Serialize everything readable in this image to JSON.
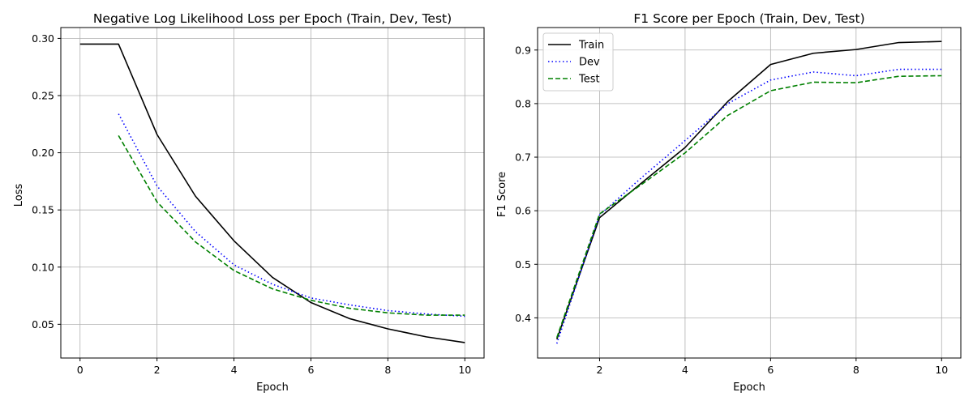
{
  "chart_data": [
    {
      "type": "line",
      "title": "Negative Log Likelihood Loss per Epoch (Train, Dev, Test)",
      "xlabel": "Epoch",
      "ylabel": "Loss",
      "xlim": [
        -0.5,
        10.5
      ],
      "ylim": [
        0.0205,
        0.3095
      ],
      "xticks": [
        0,
        2,
        4,
        6,
        8,
        10
      ],
      "xtick_labels": [
        "0",
        "2",
        "4",
        "6",
        "8",
        "10"
      ],
      "yticks": [
        0.05,
        0.1,
        0.15,
        0.2,
        0.25,
        0.3
      ],
      "ytick_labels": [
        "0.05",
        "0.10",
        "0.15",
        "0.20",
        "0.25",
        "0.30"
      ],
      "grid": true,
      "legend": null,
      "series": [
        {
          "color": "#000000",
          "dash": "solid",
          "x": [
            0,
            1,
            2,
            3,
            4,
            5,
            6,
            7,
            8,
            9,
            10
          ],
          "y": [
            0.295,
            0.295,
            0.216,
            0.162,
            0.123,
            0.091,
            0.069,
            0.055,
            0.046,
            0.039,
            0.034
          ]
        },
        {
          "color": "#0000ff",
          "dash": "dotted",
          "x": [
            1,
            2,
            3,
            4,
            5,
            6,
            7,
            8,
            9,
            10
          ],
          "y": [
            0.234,
            0.171,
            0.131,
            0.102,
            0.085,
            0.073,
            0.067,
            0.062,
            0.059,
            0.057
          ]
        },
        {
          "color": "#008000",
          "dash": "dashed",
          "x": [
            1,
            2,
            3,
            4,
            5,
            6,
            7,
            8,
            9,
            10
          ],
          "y": [
            0.215,
            0.157,
            0.122,
            0.097,
            0.081,
            0.071,
            0.064,
            0.06,
            0.058,
            0.058
          ]
        }
      ]
    },
    {
      "type": "line",
      "title": "F1 Score per Epoch (Train, Dev, Test)",
      "xlabel": "Epoch",
      "ylabel": "F1 Score",
      "xlim": [
        0.55,
        10.45
      ],
      "ylim": [
        0.325,
        0.942
      ],
      "xticks": [
        2,
        4,
        6,
        8,
        10
      ],
      "xtick_labels": [
        "2",
        "4",
        "6",
        "8",
        "10"
      ],
      "yticks": [
        0.4,
        0.5,
        0.6,
        0.7,
        0.8,
        0.9
      ],
      "ytick_labels": [
        "0.4",
        "0.5",
        "0.6",
        "0.7",
        "0.8",
        "0.9"
      ],
      "grid": true,
      "legend": "top-left",
      "series": [
        {
          "name": "Train",
          "color": "#000000",
          "dash": "solid",
          "x": [
            1,
            2,
            3,
            4,
            5,
            6,
            7,
            8,
            9,
            10
          ],
          "y": [
            0.36,
            0.587,
            0.653,
            0.718,
            0.804,
            0.873,
            0.894,
            0.901,
            0.914,
            0.916
          ]
        },
        {
          "name": "Dev",
          "color": "#0000ff",
          "dash": "dotted",
          "x": [
            1,
            2,
            3,
            4,
            5,
            6,
            7,
            8,
            9,
            10
          ],
          "y": [
            0.352,
            0.592,
            0.663,
            0.731,
            0.8,
            0.844,
            0.859,
            0.852,
            0.864,
            0.864
          ]
        },
        {
          "name": "Test",
          "color": "#008000",
          "dash": "dashed",
          "x": [
            1,
            2,
            3,
            4,
            5,
            6,
            7,
            8,
            9,
            10
          ],
          "y": [
            0.363,
            0.594,
            0.65,
            0.708,
            0.778,
            0.824,
            0.84,
            0.839,
            0.851,
            0.852
          ]
        }
      ]
    }
  ]
}
